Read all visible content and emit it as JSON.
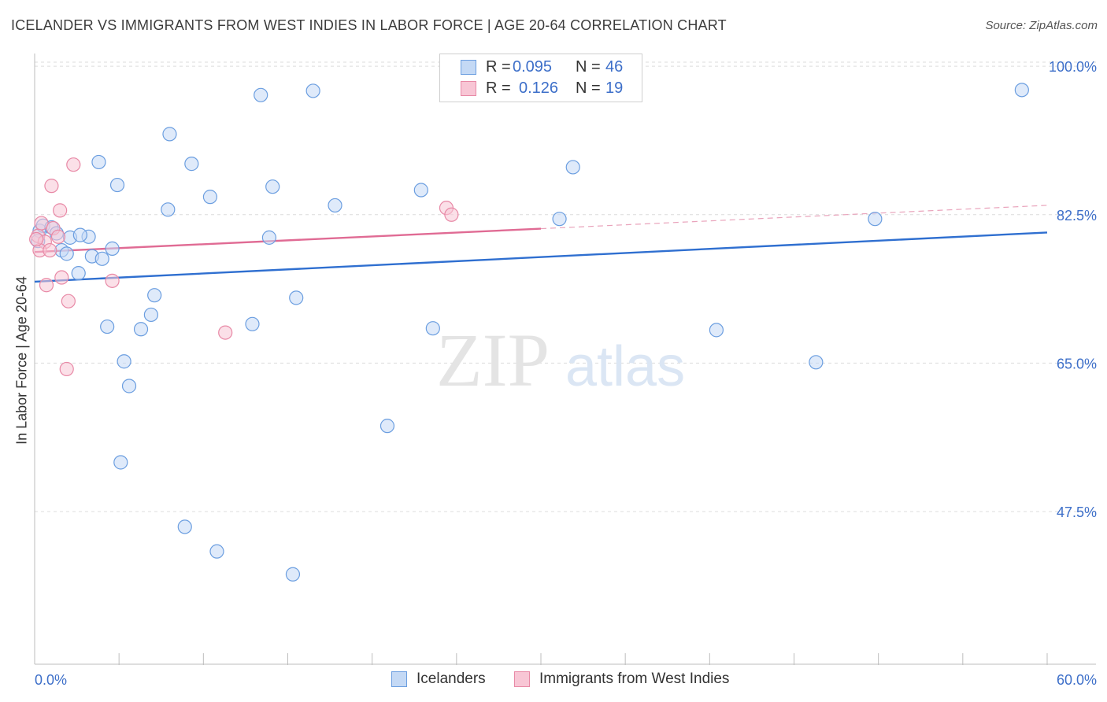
{
  "chart_data": {
    "type": "scatter",
    "title": "ICELANDER VS IMMIGRANTS FROM WEST INDIES IN LABOR FORCE | AGE 20-64 CORRELATION CHART",
    "source": "Source: ZipAtlas.com",
    "xlabel": "",
    "ylabel": "In Labor Force | Age 20-64",
    "xlim": [
      0,
      60
    ],
    "ylim": [
      29.5,
      101.5
    ],
    "x_tick_labels": [
      "0.0%",
      "60.0%"
    ],
    "y_ticks": [
      {
        "value": 100.0,
        "label": "100.0%"
      },
      {
        "value": 82.5,
        "label": "82.5%"
      },
      {
        "value": 65.0,
        "label": "65.0%"
      },
      {
        "value": 47.5,
        "label": "47.5%"
      }
    ],
    "grid": "horizontal dashed",
    "watermark": {
      "zip": "ZIP",
      "atlas": "atlas"
    },
    "legend": [
      {
        "r_label": "R =",
        "r_value": "0.095",
        "n_label": "N =",
        "n_value": "46"
      },
      {
        "r_label": "R =",
        "r_value": "0.126",
        "n_label": "N =",
        "n_value": "19"
      }
    ],
    "series": [
      {
        "name": "Icelanders",
        "color": "#6b9ee0",
        "fill": "#c4d9f5",
        "trend": {
          "x0": 0,
          "y0": 74.6,
          "x1": 60,
          "y1": 80.4,
          "solid_until": 60
        },
        "points": [
          [
            0.3,
            80.6
          ],
          [
            0.5,
            81.2
          ],
          [
            1.0,
            81.0
          ],
          [
            1.3,
            80.3
          ],
          [
            2.1,
            79.8
          ],
          [
            1.6,
            78.3
          ],
          [
            1.9,
            77.9
          ],
          [
            3.2,
            79.9
          ],
          [
            3.4,
            77.6
          ],
          [
            4.0,
            77.3
          ],
          [
            4.6,
            78.5
          ],
          [
            2.6,
            75.6
          ],
          [
            8.0,
            92.0
          ],
          [
            3.8,
            88.7
          ],
          [
            4.9,
            86.0
          ],
          [
            9.3,
            88.5
          ],
          [
            10.4,
            84.6
          ],
          [
            7.9,
            83.1
          ],
          [
            13.4,
            96.6
          ],
          [
            16.5,
            97.1
          ],
          [
            14.1,
            85.8
          ],
          [
            17.8,
            83.6
          ],
          [
            22.9,
            85.4
          ],
          [
            31.1,
            82.0
          ],
          [
            31.9,
            88.1
          ],
          [
            49.8,
            82.0
          ],
          [
            58.5,
            97.2
          ],
          [
            13.9,
            79.8
          ],
          [
            7.1,
            73.0
          ],
          [
            15.5,
            72.7
          ],
          [
            6.9,
            70.7
          ],
          [
            12.9,
            69.6
          ],
          [
            4.3,
            69.3
          ],
          [
            6.3,
            69.0
          ],
          [
            23.6,
            69.1
          ],
          [
            40.4,
            68.9
          ],
          [
            5.3,
            65.2
          ],
          [
            46.3,
            65.1
          ],
          [
            5.6,
            62.3
          ],
          [
            20.9,
            57.6
          ],
          [
            5.1,
            53.3
          ],
          [
            8.9,
            45.7
          ],
          [
            10.8,
            42.8
          ],
          [
            15.3,
            40.1
          ],
          [
            0.2,
            79.4
          ],
          [
            2.7,
            80.1
          ]
        ]
      },
      {
        "name": "Immigrants from West Indies",
        "color": "#e889a6",
        "fill": "#f8c6d5",
        "trend": {
          "x0": 0,
          "y0": 78.1,
          "x1": 60,
          "y1": 83.6,
          "solid_until": 30
        },
        "points": [
          [
            0.2,
            80.0
          ],
          [
            0.4,
            81.5
          ],
          [
            0.6,
            79.3
          ],
          [
            0.3,
            78.3
          ],
          [
            0.9,
            78.3
          ],
          [
            1.1,
            80.9
          ],
          [
            1.4,
            79.9
          ],
          [
            1.0,
            85.9
          ],
          [
            1.5,
            83.0
          ],
          [
            2.3,
            88.4
          ],
          [
            0.7,
            74.2
          ],
          [
            1.6,
            75.1
          ],
          [
            2.0,
            72.3
          ],
          [
            4.6,
            74.7
          ],
          [
            1.9,
            64.3
          ],
          [
            11.3,
            68.6
          ],
          [
            24.4,
            83.3
          ],
          [
            24.7,
            82.5
          ],
          [
            0.1,
            79.6
          ]
        ]
      }
    ]
  }
}
